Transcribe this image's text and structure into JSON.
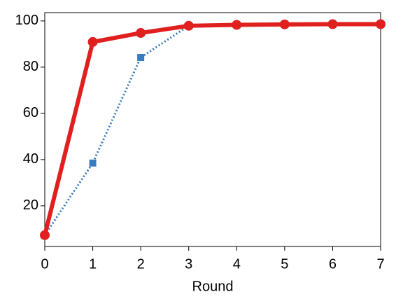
{
  "chart_data": {
    "type": "line",
    "xlabel": "Round",
    "x": [
      0,
      1,
      2,
      3,
      4,
      5,
      6,
      7
    ],
    "series": [
      {
        "color": "#3a7dbf",
        "style": "dotted",
        "marker": "square",
        "values": [
          7.3,
          38.5,
          84.2,
          97.9,
          98.3,
          98.5,
          98.6,
          98.6
        ]
      },
      {
        "color": "#e0201e",
        "style": "solid",
        "marker": "circle",
        "values": [
          7.3,
          90.9,
          94.8,
          97.9,
          98.3,
          98.5,
          98.6,
          98.6
        ]
      }
    ],
    "xlim": [
      0,
      7
    ],
    "xticks": [
      0,
      1,
      2,
      3,
      4,
      5,
      6,
      7
    ],
    "ylim": [
      2.4,
      103.6
    ],
    "yticks": [
      20,
      40,
      60,
      80,
      100
    ],
    "grid": false
  }
}
